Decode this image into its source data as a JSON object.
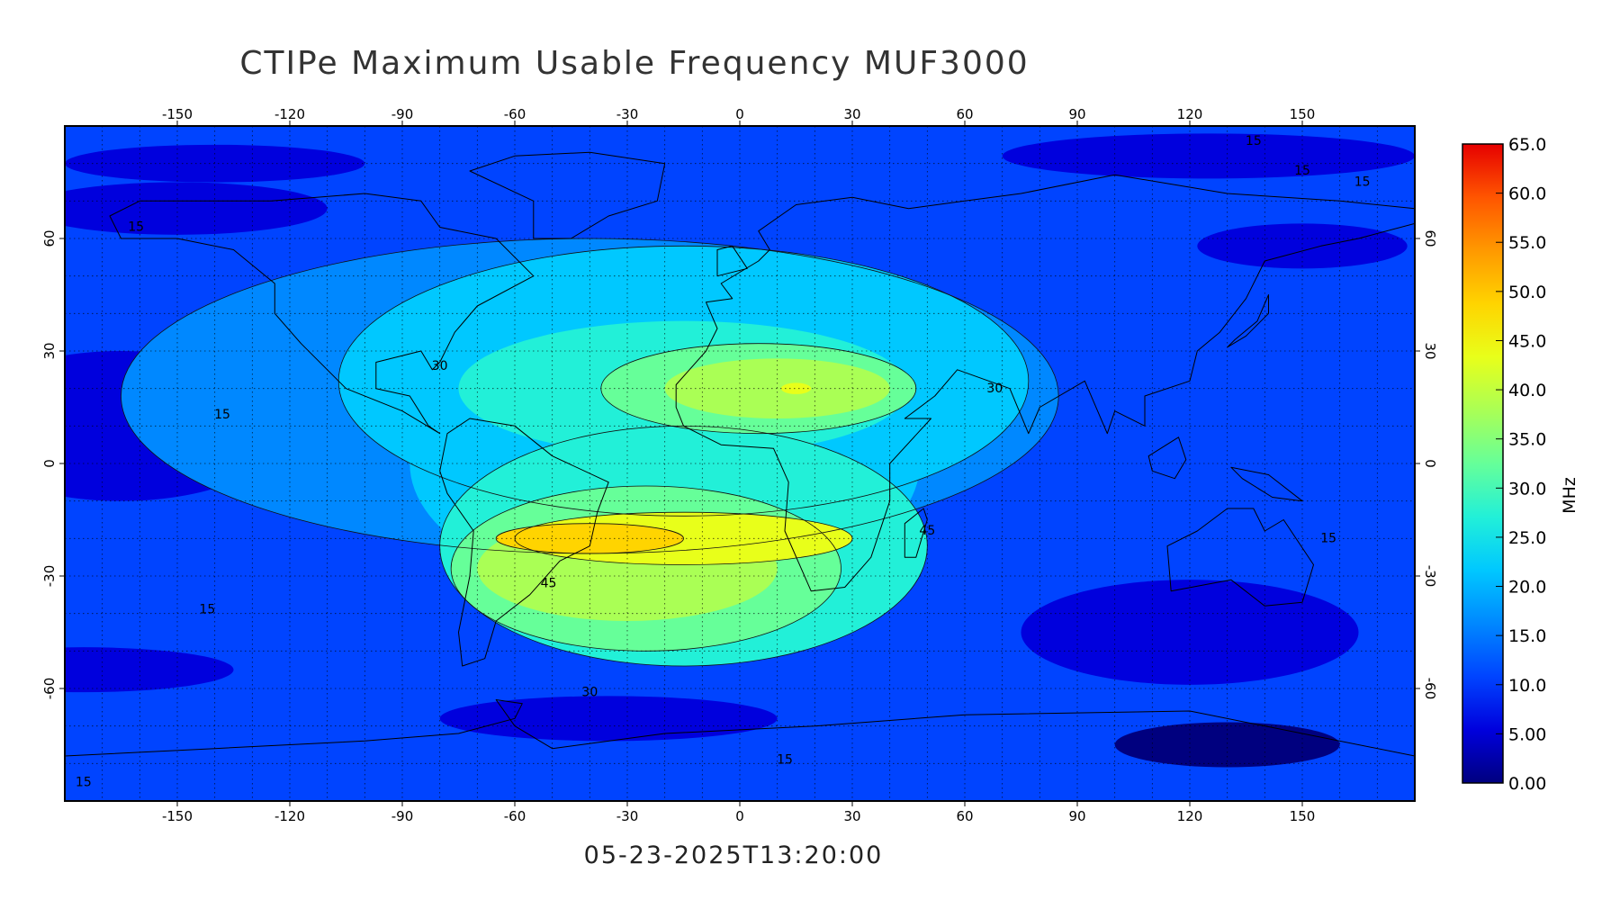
{
  "title": "CTIPe Maximum Usable Frequency MUF3000",
  "timestamp": "05-23-2025T13:20:00",
  "map": {
    "projection": "equirectangular",
    "lon_range": [
      -180,
      180
    ],
    "lat_range": [
      -90,
      90
    ],
    "x_tick_labels": [
      "-150",
      "-120",
      "-90",
      "-60",
      "-30",
      "0",
      "30",
      "60",
      "90",
      "120",
      "150"
    ],
    "y_tick_labels": [
      "60",
      "30",
      "0",
      "-30",
      "-60"
    ],
    "grid": "dotted, every 10 degrees",
    "coastlines": true
  },
  "contour_labels": [
    "15",
    "15",
    "15",
    "15",
    "15",
    "15",
    "15",
    "15",
    "30",
    "30",
    "30",
    "45",
    "45",
    "15"
  ],
  "colorbar": {
    "unit_label": "MHz",
    "tick_labels": [
      "65.0",
      "60.0",
      "55.0",
      "50.0",
      "45.0",
      "40.0",
      "35.0",
      "30.0",
      "25.0",
      "20.0",
      "15.0",
      "10.0",
      "5.00",
      "0.00"
    ],
    "range": [
      0,
      65
    ],
    "colors": [
      "#00007f",
      "#0000dd",
      "#0044ff",
      "#0088ff",
      "#00c8ff",
      "#22f0d8",
      "#66ff99",
      "#aaff55",
      "#e8ff1a",
      "#ffd400",
      "#ff9900",
      "#ff5500",
      "#e60000"
    ]
  },
  "chart_data": {
    "type": "heatmap",
    "title": "CTIPe Maximum Usable Frequency MUF3000",
    "quantity": "MUF3000",
    "unit": "MHz",
    "value_range": [
      0,
      65
    ],
    "contour_interval": 15,
    "timestamp": "05-23-2025T13:20:00",
    "features": [
      {
        "region": "equatorial anomaly crest, South America to southern Africa",
        "lon": [
          -75,
          10
        ],
        "lat": [
          -25,
          -15
        ],
        "peak_value": 50
      },
      {
        "region": "northern crest over north Africa",
        "lon": [
          -20,
          40
        ],
        "lat": [
          10,
          25
        ],
        "peak_value": 45
      },
      {
        "region": "night side Pacific",
        "lon": [
          -180,
          -100
        ],
        "lat": [
          -30,
          10
        ],
        "approx_value": 10
      },
      {
        "region": "polar regions",
        "lat": [
          60,
          90
        ],
        "approx_value": 10
      }
    ]
  }
}
